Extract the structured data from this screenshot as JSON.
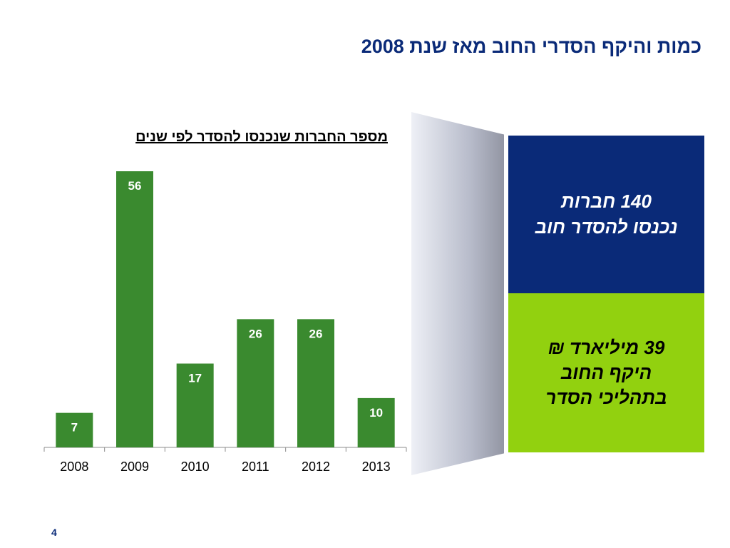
{
  "slide": {
    "title": "כמות והיקף הסדרי החוב מאז שנת 2008",
    "page_number": "4"
  },
  "chart_data": {
    "type": "bar",
    "title": "מספר החברות שנכנסו להסדר לפי שנים",
    "categories": [
      "2008",
      "2009",
      "2010",
      "2011",
      "2012",
      "2013"
    ],
    "values": [
      7,
      56,
      17,
      26,
      26,
      10
    ],
    "ylim": [
      0,
      60
    ],
    "grid": false,
    "bar_color": "#3a8a2f"
  },
  "callouts": {
    "companies": {
      "line1": "140 חברות",
      "line2": "נכנסו להסדר חוב",
      "color": "#0a2a78"
    },
    "volume": {
      "line1": "39 מיליארד ₪",
      "line2": "היקף החוב",
      "line3": "בתהליכי הסדר",
      "color": "#92d10f"
    }
  }
}
